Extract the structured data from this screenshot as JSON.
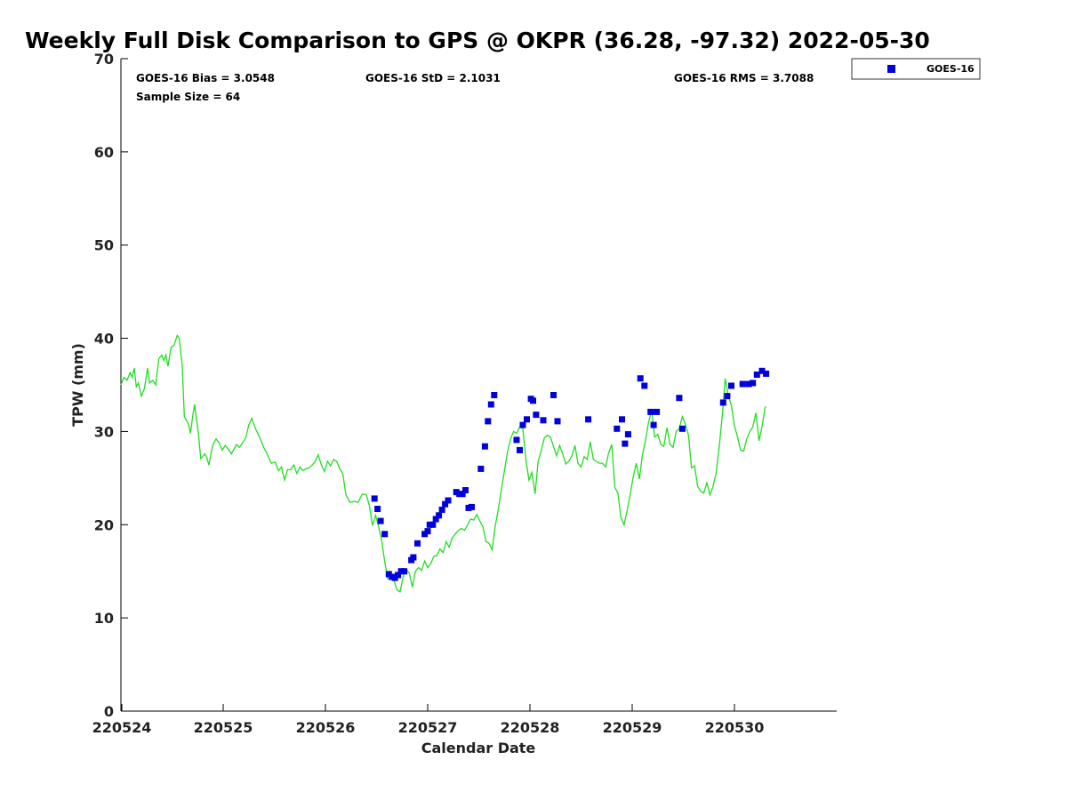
{
  "chart_data": {
    "type": "scatter",
    "title": "Weekly Full Disk Comparison to GPS @ OKPR (36.28, -97.32) 2022-05-30",
    "xlabel": "Calendar Date",
    "ylabel": "TPW (mm)",
    "xlim": [
      0,
      7
    ],
    "ylim": [
      0,
      70
    ],
    "x_ticks": [
      {
        "value": 0,
        "label": "220524"
      },
      {
        "value": 1,
        "label": "220525"
      },
      {
        "value": 2,
        "label": "220526"
      },
      {
        "value": 3,
        "label": "220527"
      },
      {
        "value": 4,
        "label": "220528"
      },
      {
        "value": 5,
        "label": "220529"
      },
      {
        "value": 6,
        "label": "220530"
      }
    ],
    "y_ticks": [
      0,
      10,
      20,
      30,
      40,
      50,
      60,
      70
    ],
    "grid": false,
    "legend": {
      "position": "top-right",
      "entries": [
        "GOES-16"
      ]
    },
    "stats": {
      "bias": "GOES-16 Bias = 3.0548",
      "std": "GOES-16 StD = 2.1031",
      "rms": "GOES-16 RMS = 3.7088",
      "sample": "Sample Size = 64"
    },
    "series": [
      {
        "name": "GPS",
        "type": "line",
        "color": "#22dd22",
        "points": [
          [
            0.0,
            35.0
          ],
          [
            0.03,
            35.8
          ],
          [
            0.06,
            35.5
          ],
          [
            0.09,
            36.3
          ],
          [
            0.11,
            35.8
          ],
          [
            0.13,
            36.8
          ],
          [
            0.15,
            34.8
          ],
          [
            0.17,
            35.2
          ],
          [
            0.2,
            33.8
          ],
          [
            0.23,
            34.6
          ],
          [
            0.26,
            36.8
          ],
          [
            0.28,
            35.2
          ],
          [
            0.31,
            35.5
          ],
          [
            0.34,
            35.0
          ],
          [
            0.37,
            37.8
          ],
          [
            0.4,
            38.2
          ],
          [
            0.42,
            37.6
          ],
          [
            0.44,
            38.2
          ],
          [
            0.46,
            37.0
          ],
          [
            0.49,
            39.0
          ],
          [
            0.52,
            39.3
          ],
          [
            0.55,
            40.3
          ],
          [
            0.57,
            40.0
          ],
          [
            0.6,
            37.0
          ],
          [
            0.62,
            31.6
          ],
          [
            0.66,
            30.8
          ],
          [
            0.68,
            29.8
          ],
          [
            0.7,
            31.5
          ],
          [
            0.72,
            32.9
          ],
          [
            0.74,
            31.2
          ],
          [
            0.76,
            29.6
          ],
          [
            0.78,
            27.1
          ],
          [
            0.8,
            27.3
          ],
          [
            0.82,
            27.6
          ],
          [
            0.84,
            27.2
          ],
          [
            0.86,
            26.4
          ],
          [
            0.88,
            27.6
          ],
          [
            0.9,
            28.6
          ],
          [
            0.93,
            29.2
          ],
          [
            0.96,
            28.8
          ],
          [
            0.99,
            28.0
          ],
          [
            1.02,
            28.5
          ],
          [
            1.05,
            28.1
          ],
          [
            1.08,
            27.6
          ],
          [
            1.1,
            28.0
          ],
          [
            1.13,
            28.6
          ],
          [
            1.16,
            28.3
          ],
          [
            1.19,
            28.8
          ],
          [
            1.22,
            29.3
          ],
          [
            1.25,
            30.7
          ],
          [
            1.28,
            31.4
          ],
          [
            1.32,
            30.2
          ],
          [
            1.36,
            29.3
          ],
          [
            1.4,
            28.2
          ],
          [
            1.43,
            27.6
          ],
          [
            1.47,
            26.6
          ],
          [
            1.51,
            26.7
          ],
          [
            1.54,
            25.8
          ],
          [
            1.57,
            26.2
          ],
          [
            1.6,
            24.8
          ],
          [
            1.63,
            25.9
          ],
          [
            1.66,
            25.9
          ],
          [
            1.69,
            26.4
          ],
          [
            1.72,
            25.5
          ],
          [
            1.75,
            26.2
          ],
          [
            1.78,
            25.8
          ],
          [
            1.81,
            26.0
          ],
          [
            1.84,
            26.1
          ],
          [
            1.87,
            26.4
          ],
          [
            1.9,
            26.8
          ],
          [
            1.93,
            27.5
          ],
          [
            1.96,
            26.4
          ],
          [
            1.99,
            25.7
          ],
          [
            2.02,
            26.8
          ],
          [
            2.05,
            26.3
          ],
          [
            2.08,
            27.0
          ],
          [
            2.11,
            26.8
          ],
          [
            2.14,
            26.0
          ],
          [
            2.17,
            25.5
          ],
          [
            2.2,
            23.2
          ],
          [
            2.24,
            22.4
          ],
          [
            2.28,
            22.5
          ],
          [
            2.32,
            22.4
          ],
          [
            2.36,
            23.3
          ],
          [
            2.4,
            23.2
          ],
          [
            2.43,
            22.0
          ],
          [
            2.46,
            19.9
          ],
          [
            2.49,
            21.0
          ],
          [
            2.52,
            19.8
          ],
          [
            2.55,
            18.3
          ],
          [
            2.58,
            16.0
          ],
          [
            2.61,
            14.2
          ],
          [
            2.64,
            14.2
          ],
          [
            2.67,
            14.0
          ],
          [
            2.7,
            13.0
          ],
          [
            2.73,
            12.8
          ],
          [
            2.76,
            14.4
          ],
          [
            2.79,
            15.2
          ],
          [
            2.82,
            14.8
          ],
          [
            2.85,
            13.3
          ],
          [
            2.88,
            15.0
          ],
          [
            2.91,
            15.4
          ],
          [
            2.94,
            15.1
          ],
          [
            2.97,
            16.1
          ],
          [
            3.0,
            15.4
          ],
          [
            3.03,
            15.8
          ],
          [
            3.06,
            16.6
          ],
          [
            3.09,
            16.7
          ],
          [
            3.12,
            17.4
          ],
          [
            3.15,
            17.0
          ],
          [
            3.18,
            18.2
          ],
          [
            3.21,
            17.6
          ],
          [
            3.24,
            18.6
          ],
          [
            3.27,
            19.0
          ],
          [
            3.3,
            19.4
          ],
          [
            3.33,
            19.6
          ],
          [
            3.36,
            19.4
          ],
          [
            3.39,
            20.0
          ],
          [
            3.42,
            20.6
          ],
          [
            3.45,
            20.5
          ],
          [
            3.48,
            21.1
          ],
          [
            3.51,
            20.4
          ],
          [
            3.54,
            19.8
          ],
          [
            3.57,
            18.2
          ],
          [
            3.6,
            18.0
          ],
          [
            3.63,
            17.3
          ],
          [
            3.66,
            19.8
          ],
          [
            3.69,
            21.6
          ],
          [
            3.72,
            23.7
          ],
          [
            3.75,
            25.8
          ],
          [
            3.78,
            27.8
          ],
          [
            3.81,
            29.2
          ],
          [
            3.84,
            30.0
          ],
          [
            3.87,
            29.8
          ],
          [
            3.9,
            30.5
          ],
          [
            3.93,
            30.3
          ],
          [
            3.96,
            27.0
          ],
          [
            3.99,
            24.8
          ],
          [
            4.02,
            25.6
          ],
          [
            4.05,
            23.3
          ],
          [
            4.08,
            26.8
          ],
          [
            4.11,
            27.9
          ],
          [
            4.14,
            29.3
          ],
          [
            4.17,
            29.6
          ],
          [
            4.2,
            29.4
          ],
          [
            4.23,
            28.4
          ],
          [
            4.26,
            27.4
          ],
          [
            4.29,
            28.5
          ],
          [
            4.32,
            27.6
          ],
          [
            4.35,
            26.5
          ],
          [
            4.38,
            26.8
          ],
          [
            4.41,
            27.4
          ],
          [
            4.44,
            28.5
          ],
          [
            4.47,
            26.6
          ],
          [
            4.5,
            26.2
          ],
          [
            4.53,
            27.3
          ],
          [
            4.56,
            27.0
          ],
          [
            4.59,
            28.9
          ],
          [
            4.62,
            27.0
          ],
          [
            4.65,
            26.8
          ],
          [
            4.68,
            26.6
          ],
          [
            4.71,
            26.6
          ],
          [
            4.74,
            26.2
          ],
          [
            4.77,
            27.7
          ],
          [
            4.8,
            28.6
          ],
          [
            4.83,
            24.0
          ],
          [
            4.86,
            23.4
          ],
          [
            4.89,
            20.8
          ],
          [
            4.92,
            20.0
          ],
          [
            4.95,
            21.5
          ],
          [
            4.98,
            23.2
          ],
          [
            5.01,
            25.1
          ],
          [
            5.04,
            26.6
          ],
          [
            5.07,
            24.9
          ],
          [
            5.1,
            27.5
          ],
          [
            5.13,
            29.0
          ],
          [
            5.16,
            31.0
          ],
          [
            5.19,
            32.3
          ],
          [
            5.22,
            29.4
          ],
          [
            5.25,
            29.7
          ],
          [
            5.28,
            28.6
          ],
          [
            5.31,
            28.4
          ],
          [
            5.34,
            30.4
          ],
          [
            5.37,
            28.6
          ],
          [
            5.4,
            28.3
          ],
          [
            5.43,
            30.0
          ],
          [
            5.46,
            30.3
          ],
          [
            5.49,
            31.6
          ],
          [
            5.52,
            30.8
          ],
          [
            5.55,
            29.6
          ],
          [
            5.58,
            26.1
          ],
          [
            5.61,
            26.3
          ],
          [
            5.64,
            24.1
          ],
          [
            5.67,
            23.6
          ],
          [
            5.7,
            23.4
          ],
          [
            5.73,
            24.5
          ],
          [
            5.76,
            23.2
          ],
          [
            5.79,
            24.1
          ],
          [
            5.82,
            25.5
          ],
          [
            5.85,
            28.3
          ],
          [
            5.88,
            31.6
          ],
          [
            5.91,
            35.7
          ],
          [
            5.94,
            33.8
          ],
          [
            5.97,
            32.8
          ],
          [
            6.0,
            30.6
          ],
          [
            6.03,
            29.4
          ],
          [
            6.06,
            28.0
          ],
          [
            6.09,
            27.9
          ],
          [
            6.12,
            29.2
          ],
          [
            6.15,
            30.0
          ],
          [
            6.18,
            30.5
          ],
          [
            6.21,
            32.0
          ],
          [
            6.24,
            29.0
          ],
          [
            6.27,
            30.5
          ],
          [
            6.3,
            32.6
          ],
          [
            6.31,
            32.6
          ]
        ]
      },
      {
        "name": "GOES-16",
        "type": "scatter",
        "color": "#0000dd",
        "points": [
          [
            2.48,
            22.8
          ],
          [
            2.51,
            21.7
          ],
          [
            2.54,
            20.4
          ],
          [
            2.58,
            19.0
          ],
          [
            2.62,
            14.7
          ],
          [
            2.65,
            14.4
          ],
          [
            2.68,
            14.3
          ],
          [
            2.71,
            14.6
          ],
          [
            2.74,
            15.0
          ],
          [
            2.77,
            15.0
          ],
          [
            2.84,
            16.2
          ],
          [
            2.86,
            16.5
          ],
          [
            2.9,
            18.0
          ],
          [
            2.97,
            19.0
          ],
          [
            3.0,
            19.3
          ],
          [
            3.02,
            20.0
          ],
          [
            3.05,
            20.0
          ],
          [
            3.08,
            20.6
          ],
          [
            3.11,
            21.0
          ],
          [
            3.14,
            21.6
          ],
          [
            3.17,
            22.2
          ],
          [
            3.2,
            22.6
          ],
          [
            3.28,
            23.5
          ],
          [
            3.31,
            23.3
          ],
          [
            3.34,
            23.3
          ],
          [
            3.37,
            23.7
          ],
          [
            3.4,
            21.8
          ],
          [
            3.43,
            21.9
          ],
          [
            3.52,
            26.0
          ],
          [
            3.56,
            28.4
          ],
          [
            3.59,
            31.1
          ],
          [
            3.62,
            32.9
          ],
          [
            3.65,
            33.9
          ],
          [
            3.87,
            29.1
          ],
          [
            3.9,
            28.0
          ],
          [
            3.93,
            30.7
          ],
          [
            3.97,
            31.3
          ],
          [
            4.01,
            33.5
          ],
          [
            4.03,
            33.3
          ],
          [
            4.06,
            31.8
          ],
          [
            4.13,
            31.2
          ],
          [
            4.23,
            33.9
          ],
          [
            4.27,
            31.1
          ],
          [
            4.57,
            31.3
          ],
          [
            4.85,
            30.3
          ],
          [
            4.9,
            31.3
          ],
          [
            4.93,
            28.7
          ],
          [
            4.96,
            29.7
          ],
          [
            5.08,
            35.7
          ],
          [
            5.12,
            34.9
          ],
          [
            5.18,
            32.1
          ],
          [
            5.21,
            30.7
          ],
          [
            5.24,
            32.1
          ],
          [
            5.46,
            33.6
          ],
          [
            5.49,
            30.3
          ],
          [
            5.89,
            33.1
          ],
          [
            5.93,
            33.8
          ],
          [
            5.97,
            34.9
          ],
          [
            6.08,
            35.1
          ],
          [
            6.14,
            35.1
          ],
          [
            6.18,
            35.2
          ],
          [
            6.22,
            36.1
          ],
          [
            6.27,
            36.5
          ],
          [
            6.31,
            36.2
          ]
        ]
      }
    ]
  }
}
